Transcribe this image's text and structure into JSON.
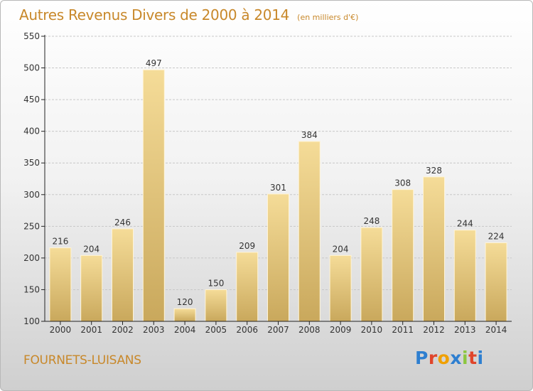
{
  "header": {
    "title": "Autres Revenus Divers de 2000 à 2014",
    "subtitle": "(en milliers d'€)"
  },
  "footer": {
    "place": "FOURNETS-LUISANS",
    "logo_text": "Proxiti",
    "logo_colors": [
      "#2e7fd0",
      "#e0452b",
      "#f0a000",
      "#2e7fd0",
      "#8cc63f",
      "#e0452b",
      "#2e7fd0"
    ]
  },
  "colors": {
    "bar_top": "#f5dc98",
    "bar_bottom": "#c9a85c",
    "axis": "#222222",
    "grid": "#c8c8c8",
    "title": "#c8882a"
  },
  "chart_data": {
    "type": "bar",
    "title": "Autres Revenus Divers de 2000 à 2014",
    "subtitle": "(en milliers d'€)",
    "xlabel": "",
    "ylabel": "",
    "categories": [
      "2000",
      "2001",
      "2002",
      "2003",
      "2004",
      "2005",
      "2006",
      "2007",
      "2008",
      "2009",
      "2010",
      "2011",
      "2012",
      "2013",
      "2014"
    ],
    "values": [
      216,
      204,
      246,
      497,
      120,
      150,
      209,
      301,
      384,
      204,
      248,
      308,
      328,
      244,
      224
    ],
    "ylim": [
      100,
      550
    ],
    "yticks": [
      100,
      150,
      200,
      250,
      300,
      350,
      400,
      450,
      500,
      550
    ],
    "grid": true,
    "data_labels": true
  }
}
